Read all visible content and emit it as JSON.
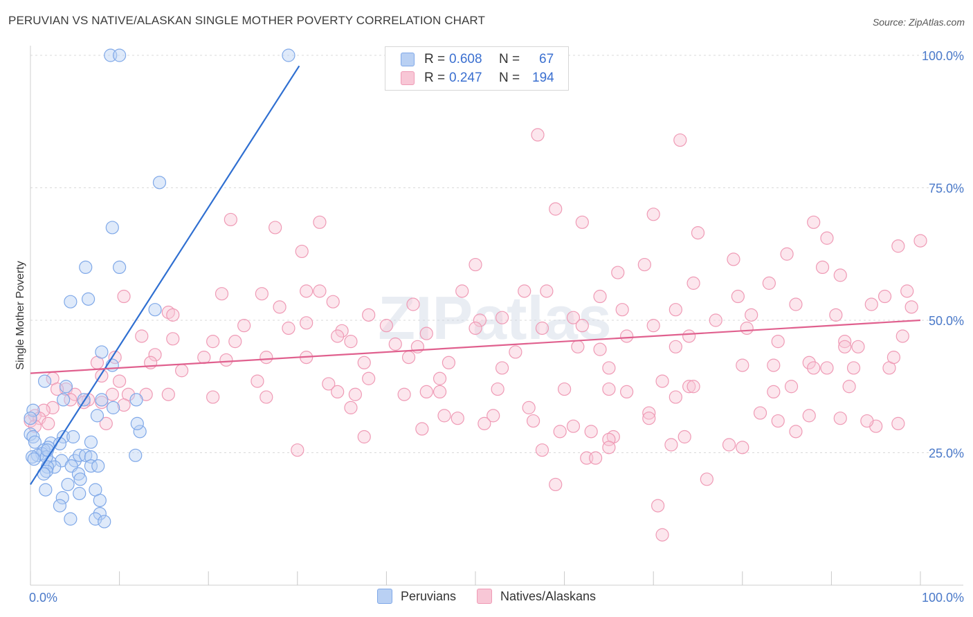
{
  "title": "PERUVIAN VS NATIVE/ALASKAN SINGLE MOTHER POVERTY CORRELATION CHART",
  "source": "Source: ZipAtlas.com",
  "watermark": "ZIPatlas",
  "legend": {
    "r_label": "R =",
    "n_label": "N =",
    "entries": [
      {
        "r": "0.608",
        "n": "67",
        "color": "#7fa8e8",
        "fill": "#b9d0f3"
      },
      {
        "r": "0.247",
        "n": "194",
        "color": "#ef9ab5",
        "fill": "#f8c7d6"
      }
    ]
  },
  "chart_data": {
    "type": "scatter",
    "title": "PERUVIAN VS NATIVE/ALASKAN SINGLE MOTHER POVERTY CORRELATION CHART",
    "xlabel": "",
    "ylabel": "Single Mother Poverty",
    "xlim": [
      0,
      100
    ],
    "ylim": [
      0,
      100
    ],
    "x_tick_labels": [
      "0.0%",
      "100.0%"
    ],
    "y_ticks": [
      25,
      50,
      75,
      100
    ],
    "y_tick_labels": [
      "25.0%",
      "50.0%",
      "75.0%",
      "100.0%"
    ],
    "grid": true,
    "legend_position": "top-center",
    "series": [
      {
        "name": "Peruvians",
        "color": "#7fa8e8",
        "trend": {
          "x0": 0,
          "y0": 19,
          "x1": 30.2,
          "y1": 98
        },
        "points": [
          [
            9,
            100
          ],
          [
            10,
            100
          ],
          [
            29,
            100
          ],
          [
            14.5,
            76
          ],
          [
            9.2,
            67.5
          ],
          [
            10,
            60
          ],
          [
            6.2,
            60
          ],
          [
            6.5,
            54
          ],
          [
            4.5,
            53.5
          ],
          [
            14,
            52
          ],
          [
            8,
            44
          ],
          [
            9.2,
            41.5
          ],
          [
            1.6,
            38.5
          ],
          [
            4,
            37.5
          ],
          [
            3.7,
            35
          ],
          [
            6,
            35
          ],
          [
            8,
            35
          ],
          [
            0.3,
            33
          ],
          [
            0,
            31.5
          ],
          [
            9.3,
            33.5
          ],
          [
            7.5,
            32
          ],
          [
            11.9,
            35
          ],
          [
            12.3,
            29
          ],
          [
            0,
            28.5
          ],
          [
            0.3,
            28
          ],
          [
            0.5,
            27
          ],
          [
            3.7,
            28
          ],
          [
            4.8,
            28
          ],
          [
            6.8,
            27
          ],
          [
            2.3,
            26.8
          ],
          [
            3.3,
            26.7
          ],
          [
            2,
            26
          ],
          [
            1.5,
            25.5
          ],
          [
            1.3,
            24.8
          ],
          [
            0.8,
            24.5
          ],
          [
            0.2,
            24.2
          ],
          [
            0.4,
            23.8
          ],
          [
            2.2,
            23.2
          ],
          [
            3.5,
            23.5
          ],
          [
            5,
            23.5
          ],
          [
            4.6,
            22.5
          ],
          [
            1.8,
            24.2
          ],
          [
            1.9,
            25.5
          ],
          [
            2.7,
            22.3
          ],
          [
            5.5,
            24.5
          ],
          [
            6.2,
            24.5
          ],
          [
            6.8,
            24.2
          ],
          [
            6.8,
            22.5
          ],
          [
            7.6,
            22.5
          ],
          [
            1.9,
            22.3
          ],
          [
            1.8,
            21.5
          ],
          [
            1.5,
            21
          ],
          [
            5.4,
            21
          ],
          [
            5.5,
            17.3
          ],
          [
            7.3,
            18
          ],
          [
            1.7,
            18
          ],
          [
            11.8,
            24.5
          ],
          [
            4.2,
            19
          ],
          [
            5.6,
            20
          ],
          [
            3.6,
            16.5
          ],
          [
            7.8,
            16
          ],
          [
            7.8,
            13.5
          ],
          [
            4.5,
            12.5
          ],
          [
            7.3,
            12.5
          ],
          [
            8.3,
            12
          ],
          [
            3.3,
            15
          ],
          [
            12,
            30.5
          ]
        ]
      },
      {
        "name": "Natives/Alaskans",
        "color": "#ef9ab5",
        "trend": {
          "x0": 0,
          "y0": 40,
          "x1": 100,
          "y1": 50
        },
        "points": [
          [
            57,
            85
          ],
          [
            73,
            84
          ],
          [
            59,
            71
          ],
          [
            70,
            70
          ],
          [
            22.5,
            69
          ],
          [
            27.5,
            67.5
          ],
          [
            32.5,
            68.5
          ],
          [
            62,
            68.5
          ],
          [
            88,
            68.5
          ],
          [
            75,
            66.5
          ],
          [
            89.5,
            65.5
          ],
          [
            100,
            65
          ],
          [
            97.5,
            64
          ],
          [
            30.5,
            63
          ],
          [
            85,
            62.5
          ],
          [
            79,
            61.5
          ],
          [
            50,
            60.5
          ],
          [
            69,
            60.5
          ],
          [
            89,
            60
          ],
          [
            66,
            59
          ],
          [
            91,
            58.5
          ],
          [
            83,
            57
          ],
          [
            74.5,
            57
          ],
          [
            55.5,
            55.5
          ],
          [
            98.5,
            55.5
          ],
          [
            31,
            55.5
          ],
          [
            26,
            55
          ],
          [
            21.5,
            55
          ],
          [
            10.5,
            54.5
          ],
          [
            32.5,
            55.5
          ],
          [
            48.5,
            55.5
          ],
          [
            58,
            55.5
          ],
          [
            64,
            54.5
          ],
          [
            79.5,
            54.5
          ],
          [
            96,
            54.5
          ],
          [
            34,
            53.5
          ],
          [
            43,
            53
          ],
          [
            28,
            52.5
          ],
          [
            86,
            53
          ],
          [
            94.5,
            53
          ],
          [
            99,
            52.5
          ],
          [
            72.5,
            52
          ],
          [
            66.5,
            52
          ],
          [
            15.5,
            51.5
          ],
          [
            16,
            51
          ],
          [
            38,
            51
          ],
          [
            53,
            50.5
          ],
          [
            61,
            50.5
          ],
          [
            77,
            50
          ],
          [
            81,
            51
          ],
          [
            90.5,
            51
          ],
          [
            50.5,
            50
          ],
          [
            40,
            49
          ],
          [
            31,
            49.5
          ],
          [
            24,
            49
          ],
          [
            70,
            49
          ],
          [
            62,
            49
          ],
          [
            80.5,
            48.5
          ],
          [
            29,
            48.5
          ],
          [
            50,
            48.5
          ],
          [
            35,
            48
          ],
          [
            44.5,
            47.5
          ],
          [
            57.5,
            48.5
          ],
          [
            67,
            47
          ],
          [
            74,
            47
          ],
          [
            84,
            46
          ],
          [
            91.5,
            46
          ],
          [
            23,
            46
          ],
          [
            20.5,
            46
          ],
          [
            16,
            46.5
          ],
          [
            12.5,
            47
          ],
          [
            34.5,
            47
          ],
          [
            36,
            46
          ],
          [
            43.5,
            45
          ],
          [
            41,
            45.5
          ],
          [
            61.5,
            45
          ],
          [
            72.5,
            45
          ],
          [
            91.5,
            45
          ],
          [
            64,
            44.5
          ],
          [
            54.5,
            44
          ],
          [
            19.5,
            43
          ],
          [
            14,
            43.5
          ],
          [
            13.5,
            42
          ],
          [
            22,
            42.5
          ],
          [
            9.5,
            43
          ],
          [
            7.5,
            42
          ],
          [
            26.5,
            43
          ],
          [
            31,
            43
          ],
          [
            37.5,
            42
          ],
          [
            42.5,
            43
          ],
          [
            47,
            42
          ],
          [
            87.5,
            42
          ],
          [
            53,
            41
          ],
          [
            65,
            41
          ],
          [
            80,
            41.5
          ],
          [
            96.5,
            41
          ],
          [
            83.5,
            41.5
          ],
          [
            89.5,
            41
          ],
          [
            92.5,
            41
          ],
          [
            88,
            41
          ],
          [
            17,
            40.5
          ],
          [
            8,
            39.5
          ],
          [
            2.5,
            39
          ],
          [
            25.5,
            38.5
          ],
          [
            33.5,
            38
          ],
          [
            38,
            39
          ],
          [
            46,
            39
          ],
          [
            71,
            38.5
          ],
          [
            85.5,
            37.5
          ],
          [
            74,
            37.5
          ],
          [
            92,
            37.5
          ],
          [
            65,
            37
          ],
          [
            60,
            37
          ],
          [
            52.5,
            37
          ],
          [
            42,
            36
          ],
          [
            34.5,
            36.5
          ],
          [
            46,
            36.5
          ],
          [
            26.5,
            35.5
          ],
          [
            20.5,
            35.5
          ],
          [
            15.5,
            36
          ],
          [
            11,
            36
          ],
          [
            4,
            37
          ],
          [
            3,
            37
          ],
          [
            5,
            36
          ],
          [
            4.5,
            35
          ],
          [
            6.5,
            35
          ],
          [
            6,
            34.5
          ],
          [
            8,
            34.5
          ],
          [
            10.5,
            34
          ],
          [
            2.5,
            33.5
          ],
          [
            1.5,
            33
          ],
          [
            0.5,
            32
          ],
          [
            0,
            31
          ],
          [
            1,
            31.5
          ],
          [
            2,
            30.5
          ],
          [
            0.5,
            30
          ],
          [
            8.5,
            30.5
          ],
          [
            9.2,
            36
          ],
          [
            13,
            36
          ],
          [
            10,
            38.5
          ],
          [
            36.5,
            36
          ],
          [
            74.5,
            37.5
          ],
          [
            44.5,
            36.5
          ],
          [
            83.5,
            36.5
          ],
          [
            67,
            36.5
          ],
          [
            72.5,
            35.5
          ],
          [
            36,
            33.5
          ],
          [
            52,
            32
          ],
          [
            46.5,
            32
          ],
          [
            56,
            33.5
          ],
          [
            82,
            32.5
          ],
          [
            87.5,
            32
          ],
          [
            69.5,
            32.5
          ],
          [
            56.5,
            31
          ],
          [
            61,
            30
          ],
          [
            69.5,
            31.5
          ],
          [
            48,
            31.5
          ],
          [
            51,
            30.5
          ],
          [
            44,
            29.5
          ],
          [
            59.5,
            29
          ],
          [
            65.5,
            28
          ],
          [
            63,
            29
          ],
          [
            65,
            27.5
          ],
          [
            73.5,
            28
          ],
          [
            86,
            29
          ],
          [
            95,
            30
          ],
          [
            94,
            31
          ],
          [
            97.5,
            30.5
          ],
          [
            91,
            31.5
          ],
          [
            37.5,
            28
          ],
          [
            30,
            25.5
          ],
          [
            57.5,
            25.5
          ],
          [
            72,
            26.5
          ],
          [
            65,
            26
          ],
          [
            78.5,
            26.5
          ],
          [
            80,
            26
          ],
          [
            62.5,
            24
          ],
          [
            63.5,
            24
          ],
          [
            59,
            19
          ],
          [
            70.5,
            15
          ],
          [
            71,
            9.5
          ],
          [
            76,
            20
          ],
          [
            84,
            31
          ],
          [
            97,
            43
          ],
          [
            93,
            45
          ],
          [
            98,
            47
          ]
        ]
      }
    ]
  },
  "x_axis_labels": {
    "left": "0.0%",
    "right": "100.0%"
  }
}
